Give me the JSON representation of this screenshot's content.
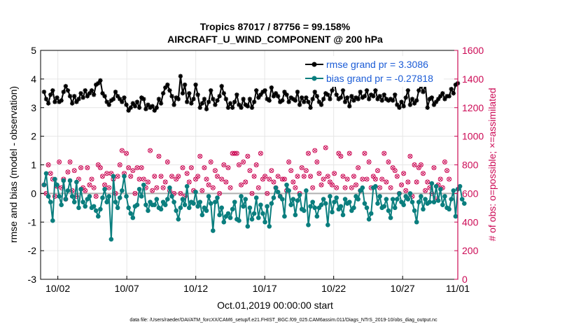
{
  "chart_data": {
    "type": "line",
    "title_line1": "Tropics 87017 / 87756 = 99.158%",
    "title_line2": "AIRCRAFT_U_WIND_COMPONENT @ 200 hPa",
    "xlabel": "Oct.01,2019 00:00:00 start",
    "ylabel_left": "rmse and bias (model - observation)",
    "ylabel_right": "# of obs: o=possible; ×=assimilated",
    "ylim_left": [
      -3,
      5
    ],
    "ylim_right": [
      0,
      1600
    ],
    "xlim": [
      0.75,
      31
    ],
    "x_ticks": [
      2,
      7,
      12,
      17,
      22,
      27,
      31
    ],
    "x_tick_labels": [
      "10/02",
      "10/07",
      "10/12",
      "10/17",
      "10/22",
      "10/27",
      "11/01"
    ],
    "y_ticks_left": [
      -3,
      -2,
      -1,
      0,
      1,
      2,
      3,
      4,
      5
    ],
    "y_tick_labels_left": [
      "-3",
      "-2",
      "-1",
      "0",
      "1",
      "2",
      "3",
      "4",
      "5"
    ],
    "y_ticks_right": [
      0,
      200,
      400,
      600,
      800,
      1000,
      1200,
      1400,
      1600
    ],
    "y_tick_labels_right": [
      "0",
      "200",
      "400",
      "600",
      "800",
      "1000",
      "1200",
      "1400",
      "1600"
    ],
    "colors": {
      "rmse": "#000000",
      "bias": "#0a7e7e",
      "obs": "#cc0a55",
      "zero_line": "#b0b0b0",
      "legend_text": "#1a5bd6"
    },
    "legend": [
      {
        "label": "rmse grand pr = 3.3086",
        "series": "rmse"
      },
      {
        "label": "bias grand pr = -0.27818",
        "series": "bias"
      }
    ],
    "series": [
      {
        "name": "rmse",
        "values": [
          3.55,
          3.3,
          3.15,
          3.45,
          3.6,
          3.2,
          3.35,
          3.2,
          3.25,
          3.55,
          3.75,
          3.6,
          3.4,
          3.15,
          3.4,
          3.2,
          3.3,
          3.5,
          3.35,
          3.6,
          3.4,
          3.5,
          3.6,
          3.45,
          3.8,
          3.85,
          3.95,
          3.5,
          3.4,
          3.2,
          3.1,
          3.25,
          3.3,
          3.55,
          3.4,
          3.3,
          3.2,
          3.35,
          3.1,
          2.9,
          3.0,
          3.15,
          3.05,
          3.2,
          3.0,
          3.35,
          3.3,
          2.95,
          3.1,
          3.0,
          3.05,
          2.9,
          3.0,
          3.3,
          3.15,
          3.5,
          3.7,
          3.8,
          3.6,
          3.4,
          3.1,
          3.35,
          3.3,
          4.1,
          3.5,
          3.8,
          3.2,
          3.5,
          3.15,
          3.3,
          3.8,
          3.45,
          3.0,
          3.15,
          3.3,
          2.95,
          3.2,
          3.6,
          3.3,
          3.1,
          3.25,
          3.4,
          3.75,
          3.5,
          3.3,
          3.0,
          3.15,
          3.0,
          3.2,
          3.45,
          3.1,
          3.0,
          3.3,
          3.1,
          3.05,
          3.3,
          3.0,
          3.2,
          3.6,
          3.35,
          3.45,
          3.55,
          3.6,
          3.3,
          3.25,
          3.7,
          3.4,
          3.5,
          3.4,
          3.2,
          3.25,
          3.55,
          3.45,
          3.2,
          3.35,
          3.3,
          3.25,
          3.55,
          3.1,
          3.35,
          3.2,
          3.35,
          3.2,
          3.0,
          3.3,
          3.55,
          3.4,
          3.2,
          3.1,
          3.3,
          3.5,
          3.45,
          3.3,
          3.6,
          3.9,
          3.45,
          3.3,
          3.35,
          3.6,
          3.2,
          3.35,
          3.05,
          3.4,
          3.25,
          3.35,
          3.3,
          3.55,
          3.35,
          3.4,
          3.6,
          3.3,
          3.45,
          3.4,
          3.6,
          3.3,
          3.4,
          3.25,
          3.45,
          3.3,
          3.25,
          3.3,
          3.25,
          3.45,
          3.1,
          3.0,
          3.2,
          3.05,
          3.35,
          3.6,
          3.1,
          3.3,
          3.15,
          3.25,
          3.6,
          3.75,
          3.55,
          3.8,
          3.0,
          3.3,
          3.35,
          3.1,
          3.2,
          3.3,
          3.4,
          3.5,
          3.3,
          3.4,
          3.4,
          3.65,
          3.5,
          3.8,
          3.85
        ]
      },
      {
        "name": "bias",
        "values": [
          0.3,
          0.7,
          -0.1,
          -0.3,
          -0.95,
          0.5,
          0.3,
          -0.1,
          -0.4,
          0.45,
          -0.2,
          0.1,
          0.45,
          -0.1,
          -0.3,
          0.4,
          -0.5,
          0.15,
          -0.3,
          -0.45,
          -0.2,
          -0.1,
          -0.5,
          -0.45,
          -0.6,
          -0.8,
          -0.55,
          -0.15,
          0.15,
          -0.3,
          -0.1,
          -1.6,
          0.6,
          -0.3,
          -0.5,
          -0.15,
          0.1,
          0.6,
          -0.1,
          -0.5,
          -0.7,
          -0.85,
          -0.45,
          -0.4,
          0.15,
          -0.1,
          0.3,
          -0.4,
          -0.6,
          -0.3,
          -0.4,
          -0.4,
          -0.2,
          -0.5,
          -0.55,
          -0.3,
          -0.4,
          -0.2,
          0.2,
          -0.1,
          -0.3,
          -0.6,
          -0.9,
          -0.5,
          -0.2,
          -0.4,
          0.25,
          -0.5,
          -0.3,
          -0.35,
          0.05,
          -0.45,
          -0.3,
          -0.75,
          -0.5,
          -0.6,
          -0.1,
          -0.35,
          -1.3,
          -0.3,
          -0.15,
          -0.75,
          -0.5,
          -1.0,
          -0.8,
          -0.7,
          -0.85,
          -0.55,
          -0.3,
          -0.9,
          -0.95,
          -0.1,
          -0.45,
          -0.2,
          -1.15,
          -0.5,
          -0.9,
          -0.7,
          -0.15,
          -0.85,
          -0.4,
          -0.7,
          -1.0,
          -0.45,
          -1.15,
          -0.35,
          -0.15,
          0.2,
          0.05,
          -0.1,
          -0.2,
          -0.8,
          0.3,
          0.1,
          -0.4,
          -0.2,
          -0.75,
          -0.25,
          -0.05,
          -0.55,
          -0.6,
          0.1,
          -1.1,
          -0.45,
          -0.3,
          -0.5,
          -0.8,
          -0.5,
          -0.4,
          -0.2,
          -0.35,
          -1.1,
          -0.1,
          -0.65,
          -0.3,
          -0.15,
          -0.55,
          -0.45,
          -0.75,
          -0.2,
          -0.35,
          -0.3,
          -0.6,
          -0.5,
          -0.1,
          -0.2,
          0.1,
          0.2,
          -0.35,
          -0.5,
          -0.9,
          -0.7,
          0.2,
          0.25,
          -0.35,
          -0.1,
          -0.5,
          -0.45,
          -0.2,
          -0.6,
          -0.85,
          -0.2,
          -0.5,
          -0.2,
          0.0,
          -0.3,
          -0.4,
          -0.1,
          -0.2,
          0.0,
          -0.3,
          -0.6,
          -1.0,
          -0.3,
          -0.1,
          -0.55,
          -0.2,
          -0.35,
          -0.3,
          0.35,
          -0.3,
          0.25,
          -0.25,
          0.15,
          -0.4,
          -0.1,
          -0.5,
          -0.55,
          -0.2,
          0.1,
          -0.8,
          0.15,
          0.25,
          -0.2,
          -0.35
        ]
      },
      {
        "name": "obs_possible",
        "values": [
          660,
          600,
          800,
          740,
          700,
          580,
          650,
          820,
          640,
          700,
          560,
          750,
          820,
          620,
          760,
          580,
          700,
          780,
          640,
          620,
          780,
          660,
          700,
          640,
          580,
          800,
          780,
          720,
          660,
          740,
          640,
          740,
          700,
          600,
          720,
          800,
          900,
          740,
          880,
          780,
          720,
          760,
          600,
          780,
          700,
          780,
          700,
          640,
          680,
          900,
          620,
          720,
          640,
          860,
          720,
          640,
          680,
          820,
          620,
          720,
          600,
          700,
          720,
          600,
          780,
          580,
          740,
          680,
          780,
          620,
          700,
          720,
          860,
          620,
          780,
          700,
          660,
          820,
          640,
          760,
          720,
          600,
          700,
          800,
          680,
          780,
          640,
          880,
          880,
          880,
          800,
          660,
          820,
          680,
          860,
          760,
          600,
          720,
          800,
          640,
          880,
          700,
          720,
          600,
          700,
          760,
          680,
          640,
          720,
          580,
          700,
          700,
          620,
          820,
          760,
          680,
          640,
          720,
          600,
          780,
          720,
          760,
          880,
          720,
          640,
          900,
          820,
          740,
          660,
          700,
          920,
          720,
          680,
          660,
          740,
          640,
          880,
          860,
          720,
          640,
          700,
          880,
          640,
          720,
          660,
          780,
          620,
          700,
          880,
          700,
          820,
          640,
          720,
          700,
          760,
          640,
          700,
          880,
          680,
          820,
          640,
          780,
          760,
          720,
          600,
          660,
          740,
          620,
          680,
          860,
          580,
          800,
          680,
          780,
          800,
          740,
          620,
          680,
          640,
          600,
          780,
          560,
          660,
          700,
          640,
          820,
          760,
          700
        ]
      }
    ]
  },
  "footnote": "data file: /Users/raeder/DAI/ATM_forcXX/CAM6_setup/f.e21.FHIST_BGC.f09_025.CAM6assim.011/Diags_NTrS_2019-10/obs_diag_output.nc"
}
